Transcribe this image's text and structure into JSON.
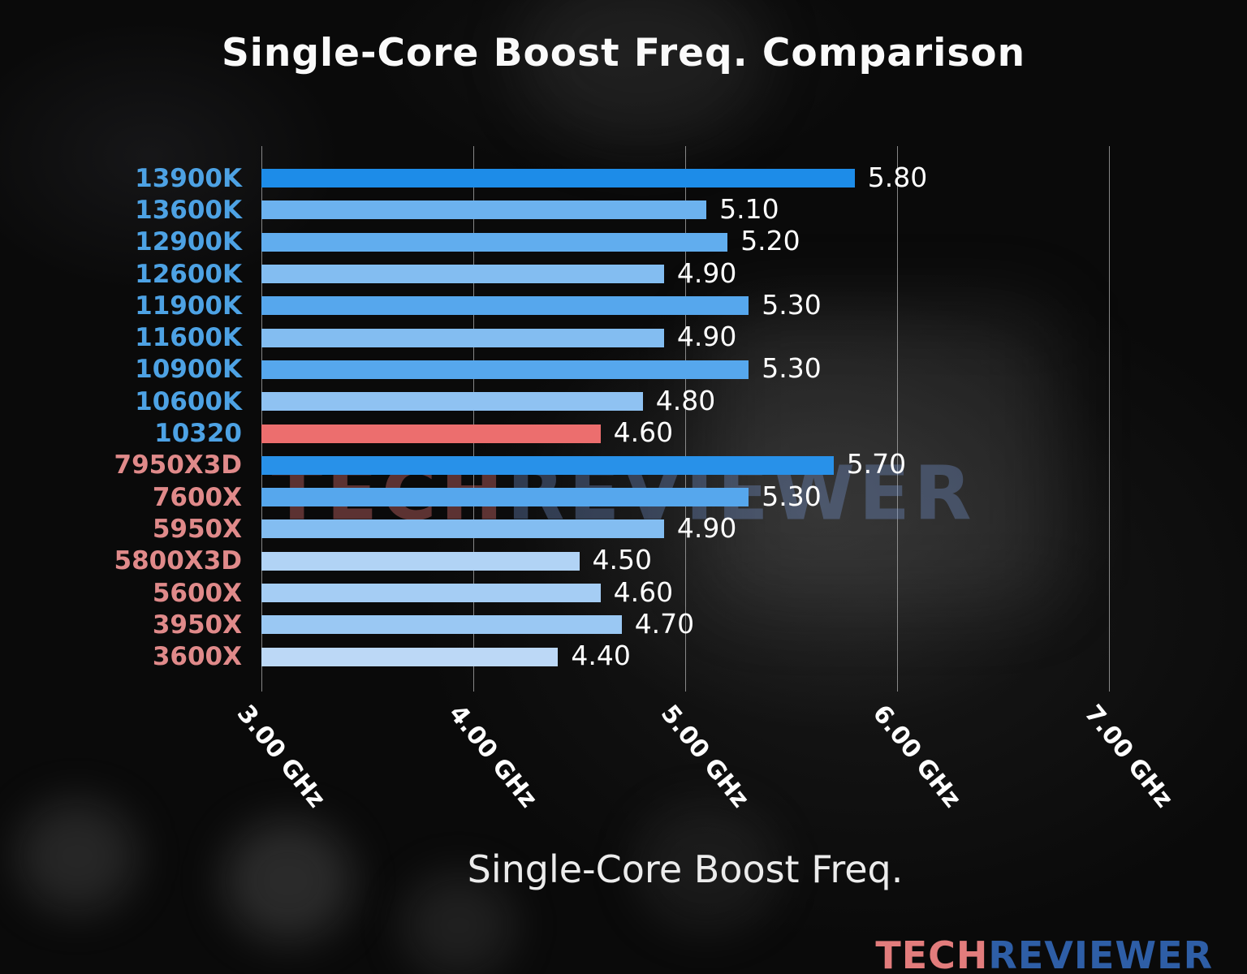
{
  "title": "Single-Core Boost Freq. Comparison",
  "watermark": {
    "tech": "TECH",
    "reviewer": "REVIEWER"
  },
  "logo": {
    "tech": "TECH",
    "reviewer": "REVIEWER"
  },
  "chart_data": {
    "type": "bar",
    "orientation": "horizontal",
    "title": "Single-Core Boost Freq. Comparison",
    "xlabel": "Single-Core Boost Freq.",
    "xlim": [
      3.0,
      7.0
    ],
    "grid": true,
    "xticks": [
      {
        "value": 3.0,
        "label": "3.00 GHz"
      },
      {
        "value": 4.0,
        "label": "4.00 GHz"
      },
      {
        "value": 5.0,
        "label": "5.00 GHz"
      },
      {
        "value": 6.0,
        "label": "6.00 GHz"
      },
      {
        "value": 7.0,
        "label": "7.00 GHz"
      }
    ],
    "categories": [
      "13900K",
      "13600K",
      "12900K",
      "12600K",
      "11900K",
      "11600K",
      "10900K",
      "10600K",
      "10320",
      "7950X3D",
      "7600X",
      "5950X",
      "5800X3D",
      "5600X",
      "3950X",
      "3600X"
    ],
    "values": [
      5.8,
      5.1,
      5.2,
      4.9,
      5.3,
      4.9,
      5.3,
      4.8,
      4.6,
      5.7,
      5.3,
      4.9,
      4.5,
      4.6,
      4.7,
      4.4
    ],
    "value_labels": [
      "5.80",
      "5.10",
      "5.20",
      "4.90",
      "5.30",
      "4.90",
      "5.30",
      "4.80",
      "4.60",
      "5.70",
      "5.30",
      "4.90",
      "4.50",
      "4.60",
      "4.70",
      "4.40"
    ],
    "bar_colors": [
      "#1d8ce8",
      "#6cb2ef",
      "#61adee",
      "#83bdf1",
      "#56a7ed",
      "#83bdf1",
      "#56a7ed",
      "#8fc2f2",
      "#ec6e6e",
      "#2891e9",
      "#56a7ed",
      "#83bdf1",
      "#b1d3f5",
      "#a5cdf4",
      "#9ac8f3",
      "#bcd8f6"
    ],
    "label_colors": [
      "#4da2e4",
      "#4da2e4",
      "#4da2e4",
      "#4da2e4",
      "#4da2e4",
      "#4da2e4",
      "#4da2e4",
      "#4da2e4",
      "#4da2e4",
      "#e08a8a",
      "#e08a8a",
      "#e08a8a",
      "#e08a8a",
      "#e08a8a",
      "#e08a8a",
      "#e08a8a"
    ],
    "highlight_category": "10320",
    "colors": {
      "intel_label": "#4da2e4",
      "amd_label": "#e08a8a",
      "highlight_bar": "#ec6e6e",
      "value_label": "#ffffff",
      "gridline": "#afafaf",
      "title": "#fafafa"
    }
  }
}
